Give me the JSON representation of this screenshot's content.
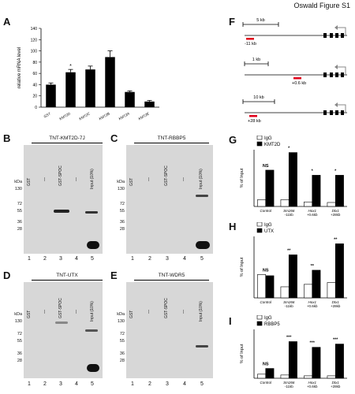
{
  "figure_title": "Oswald Figure S1",
  "panels": {
    "A": {
      "label": "A"
    },
    "B": {
      "label": "B",
      "title": "TNT-KMT2D-7J",
      "lanes": [
        "GST",
        "—",
        "GST-SPOC",
        "—",
        "Input (10%)"
      ],
      "numbers": [
        "1",
        "2",
        "3",
        "4",
        "5"
      ]
    },
    "C": {
      "label": "C",
      "title": "TNT-RBBP5",
      "lanes": [
        "GST",
        "—",
        "GST-SPOC",
        "—",
        "Input (10%)"
      ],
      "numbers": [
        "1",
        "2",
        "3",
        "4",
        "5"
      ]
    },
    "D": {
      "label": "D",
      "title": "TNT-UTX",
      "lanes": [
        "GST",
        "—",
        "GST-SPOC",
        "—",
        "Input (10%)"
      ],
      "numbers": [
        "1",
        "2",
        "3",
        "4",
        "5"
      ]
    },
    "E": {
      "label": "E",
      "title": "TNT-WDR5",
      "lanes": [
        "GST",
        "—",
        "GST-SPOC",
        "—",
        "Input (10%)"
      ],
      "numbers": [
        "1",
        "2",
        "3",
        "4",
        "5"
      ]
    },
    "F": {
      "label": "F"
    },
    "G": {
      "label": "G"
    },
    "H": {
      "label": "H"
    },
    "I": {
      "label": "I"
    }
  },
  "mw_markers": [
    "kDa",
    "130",
    "72",
    "55",
    "36",
    "28"
  ],
  "gene_maps": [
    {
      "name": "Sm266",
      "scale": "5 kb",
      "site": "-11 kb"
    },
    {
      "name": "Hox1",
      "scale": "1 kb",
      "site": "+0.6 kb"
    },
    {
      "name": "Dtx1",
      "scale": "10 kb",
      "site": "+28 kb"
    }
  ],
  "chart_data": [
    {
      "panel": "A",
      "type": "bar",
      "ylabel": "relative mRNA level",
      "ylim": [
        0,
        140
      ],
      "yticks": [
        0,
        20,
        40,
        60,
        80,
        100,
        120,
        140
      ],
      "categories": [
        "GST",
        "KMT2D",
        "KMT2C",
        "KMT2B",
        "KMT2A",
        "KMT2E"
      ],
      "values": [
        40,
        62,
        67,
        89,
        27,
        10
      ],
      "errors": [
        3,
        5,
        6,
        11,
        2,
        2
      ],
      "sig": [
        "",
        "*",
        "",
        "",
        "",
        ""
      ]
    },
    {
      "panel": "G",
      "type": "bar",
      "ylabel": "% of Input",
      "series": [
        {
          "name": "IgG",
          "values": [
            0.12,
            0.12,
            0.08,
            0.07
          ]
        },
        {
          "name": "KMT2D",
          "values": [
            0.64,
            0.95,
            0.55,
            0.55
          ]
        }
      ],
      "categories": [
        "Control",
        "Sm266 -11kb",
        "Hox1 +0.6kb",
        "Dtx1 +28kb"
      ],
      "sig": [
        "NS",
        "*",
        "*",
        "*"
      ],
      "ylim": [
        0,
        1.0
      ],
      "colors": [
        "#ffffff",
        "#000000"
      ]
    },
    {
      "panel": "H",
      "type": "bar",
      "ylabel": "% of Input",
      "series": [
        {
          "name": "IgG",
          "values": [
            0.038,
            0.018,
            0.022,
            0.025
          ]
        },
        {
          "name": "UTX",
          "values": [
            0.036,
            0.07,
            0.045,
            0.088
          ]
        }
      ],
      "categories": [
        "Control",
        "Sm266 -11kb",
        "Hox1 +0.6kb",
        "Dtx1 +28kb"
      ],
      "sig": [
        "NS",
        "**",
        "**",
        "**"
      ],
      "ylim": [
        0,
        0.1
      ],
      "colors": [
        "#ffffff",
        "#000000"
      ]
    },
    {
      "panel": "I",
      "type": "bar",
      "ylabel": "% of Input",
      "series": [
        {
          "name": "IgG",
          "values": [
            0.05,
            0.04,
            0.03,
            0.03
          ]
        },
        {
          "name": "RBBP5",
          "values": [
            0.12,
            0.45,
            0.38,
            0.42
          ]
        }
      ],
      "categories": [
        "Control",
        "Sm266 -11kb",
        "Hox1 +0.6kb",
        "Dtx1 +28kb"
      ],
      "sig": [
        "NS",
        "***",
        "***",
        "***"
      ],
      "ylim": [
        0,
        0.6
      ],
      "colors": [
        "#ffffff",
        "#000000"
      ]
    }
  ]
}
